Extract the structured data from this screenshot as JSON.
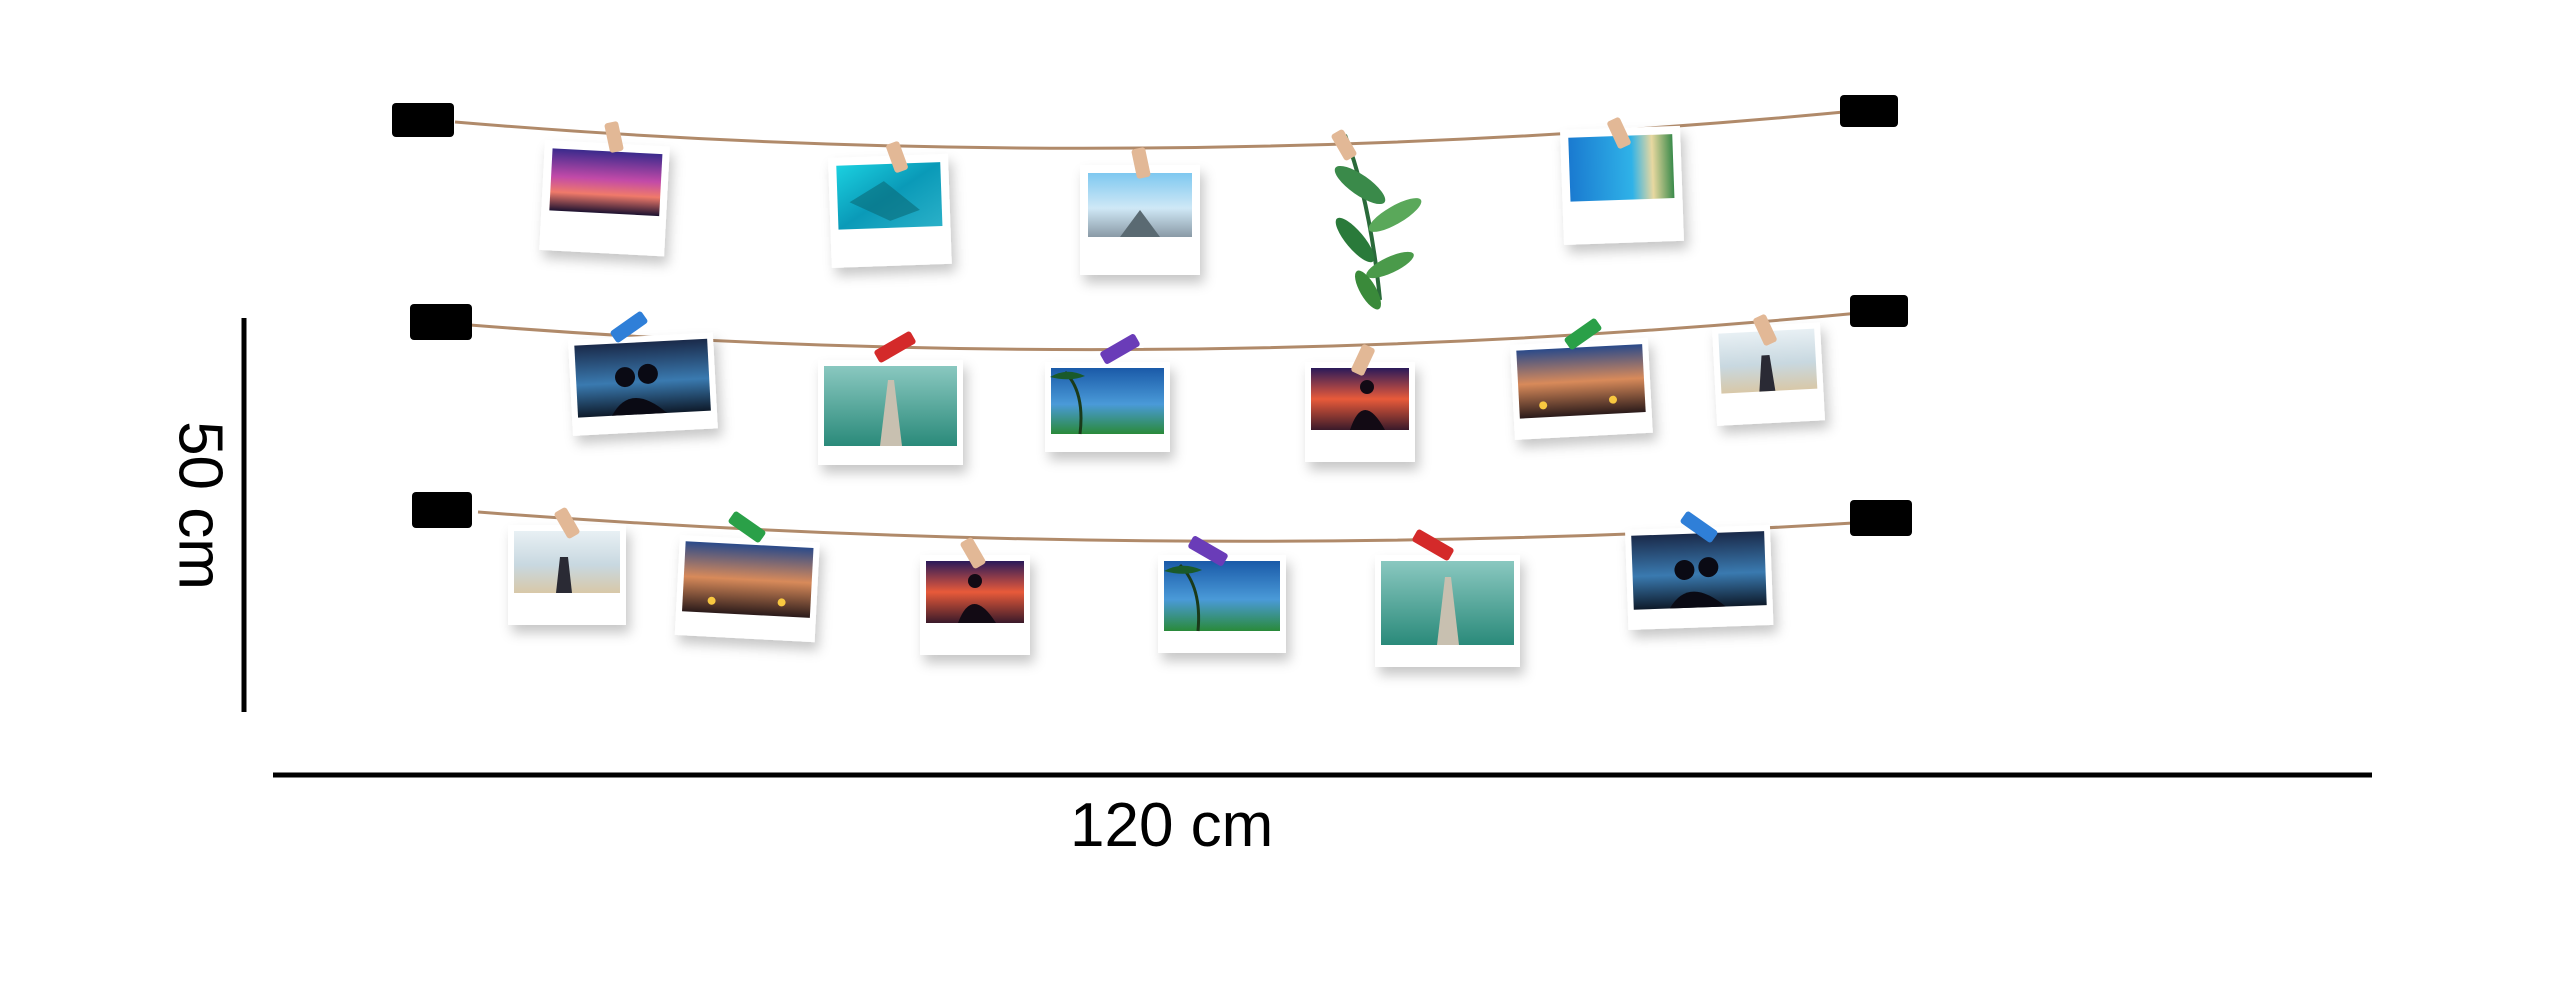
{
  "dimensions": {
    "width_label": "120 cm",
    "height_label": "50 cm"
  },
  "colors": {
    "string": "#b08a6a",
    "anchor": "#000000",
    "frame": "#ffffff",
    "clip_wood": "#e2b896",
    "clip_colors": [
      "#2f7fd8",
      "#d42a2a",
      "#6a3cb8",
      "#2aa048",
      "#e2b896"
    ]
  },
  "rows": [
    {
      "name": "top",
      "photos": [
        {
          "scene": "sunset-mountains",
          "clip": "wood"
        },
        {
          "scene": "aerial-reef",
          "clip": "wood"
        },
        {
          "scene": "road-sky",
          "clip": "wood"
        },
        {
          "scene": "plant",
          "clip": "wood"
        },
        {
          "scene": "coastline",
          "clip": "wood"
        }
      ]
    },
    {
      "name": "middle",
      "photos": [
        {
          "scene": "couple-silhouette",
          "clip": "blue"
        },
        {
          "scene": "pier",
          "clip": "red"
        },
        {
          "scene": "palm-beach",
          "clip": "purple"
        },
        {
          "scene": "couple-sunset",
          "clip": "wood"
        },
        {
          "scene": "beach-dinner",
          "clip": "green"
        },
        {
          "scene": "couple-beach",
          "clip": "wood"
        }
      ]
    },
    {
      "name": "bottom",
      "photos": [
        {
          "scene": "couple-beach",
          "clip": "wood"
        },
        {
          "scene": "beach-dinner",
          "clip": "green"
        },
        {
          "scene": "couple-sunset",
          "clip": "wood"
        },
        {
          "scene": "palm-beach",
          "clip": "purple"
        },
        {
          "scene": "pier",
          "clip": "red"
        },
        {
          "scene": "couple-silhouette",
          "clip": "blue"
        }
      ]
    }
  ]
}
